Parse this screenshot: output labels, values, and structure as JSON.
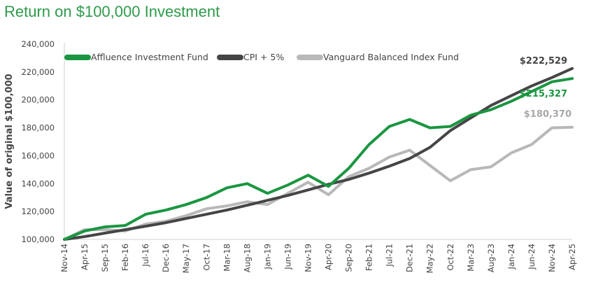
{
  "chart_data": {
    "type": "line",
    "title": "Return on $100,000 Investment",
    "ylabel": "Value of original $100,000",
    "xlabel": "",
    "ylim": [
      100000,
      240000
    ],
    "yticks": [
      100000,
      120000,
      140000,
      160000,
      180000,
      200000,
      220000,
      240000
    ],
    "ytick_labels": [
      "100,000",
      "120,000",
      "140,000",
      "160,000",
      "180,000",
      "200,000",
      "220,000",
      "240,000"
    ],
    "x_labels": [
      "Nov-14",
      "Apr-15",
      "Sep-15",
      "Feb-16",
      "Jul-16",
      "Dec-16",
      "May-17",
      "Oct-17",
      "Mar-18",
      "Aug-18",
      "Jan-19",
      "Jun-19",
      "Nov-19",
      "Apr-20",
      "Sep-20",
      "Feb-21",
      "Jul-21",
      "Dec-21",
      "May-22",
      "Oct-22",
      "Mar-23",
      "Aug-23",
      "Jan-24",
      "Jun-24",
      "Nov-24",
      "Apr-25"
    ],
    "grid": false,
    "legend_position": "top-left",
    "series": [
      {
        "name": "Affluence Investment Fund",
        "color": "#1a9641",
        "end_label": "$215,327",
        "values": [
          100000,
          106000,
          109000,
          110000,
          118000,
          121000,
          125000,
          130000,
          137000,
          140000,
          133000,
          139000,
          146000,
          138000,
          151000,
          168000,
          181000,
          186000,
          180000,
          181000,
          189000,
          193000,
          199000,
          206000,
          213000,
          215327
        ]
      },
      {
        "name": "CPI + 5%",
        "color": "#454545",
        "end_label": "$222,529",
        "values": [
          100000,
          102000,
          104500,
          107000,
          109500,
          112000,
          115000,
          118000,
          121000,
          124500,
          128000,
          131500,
          135500,
          139500,
          143000,
          147500,
          152500,
          158000,
          166000,
          178000,
          187000,
          196000,
          203000,
          210000,
          216000,
          222529
        ]
      },
      {
        "name": "Vanguard Balanced Index Fund",
        "color": "#b8b8b8",
        "end_label": "$180,370",
        "values": [
          100000,
          107000,
          107000,
          106000,
          111000,
          113000,
          117000,
          122000,
          124000,
          127000,
          125000,
          133000,
          141000,
          132000,
          145000,
          151000,
          159000,
          164000,
          153000,
          142000,
          150000,
          152000,
          162000,
          168000,
          180000,
          180370
        ]
      }
    ]
  }
}
